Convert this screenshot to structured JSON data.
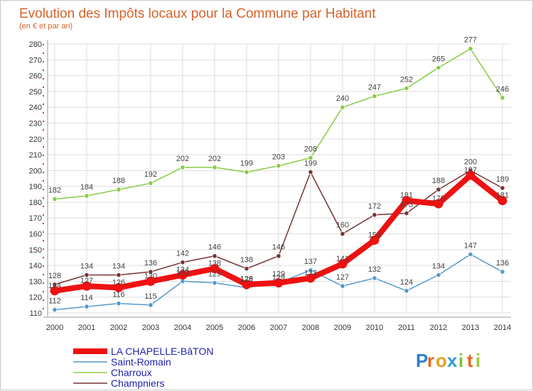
{
  "chart_data": {
    "type": "line",
    "title": "Evolution des Impôts locaux pour la Commune par Habitant",
    "subtitle": "(en € et par an)",
    "xlabel": "",
    "ylabel": "",
    "categories": [
      "2000",
      "2001",
      "2002",
      "2003",
      "2004",
      "2005",
      "2006",
      "2007",
      "2008",
      "2009",
      "2010",
      "2011",
      "2012",
      "2013",
      "2014"
    ],
    "ylim": [
      110,
      280
    ],
    "yticks": [
      110,
      120,
      130,
      140,
      150,
      160,
      170,
      180,
      190,
      200,
      210,
      220,
      230,
      240,
      250,
      260,
      270,
      280
    ],
    "grid": true,
    "legend_position": "bottom-left",
    "series": [
      {
        "name": "LA CHAPELLE-BâTON",
        "color": "#ee1111",
        "emphasis": true,
        "values": [
          124,
          127,
          126,
          130,
          134,
          138,
          128,
          129,
          132,
          141,
          156,
          181,
          179,
          197,
          181
        ],
        "labels": [
          "124",
          "127",
          "126",
          "130",
          "134",
          "138",
          "128",
          "129",
          "132",
          "141",
          "156",
          "181",
          "179",
          "197",
          "181"
        ]
      },
      {
        "name": "Saint-Romain",
        "color": "#5599cc",
        "values": [
          112,
          114,
          116,
          115,
          130,
          129,
          126,
          129,
          137,
          127,
          132,
          124,
          134,
          147,
          136
        ],
        "labels": [
          "112",
          "114",
          "116",
          "115",
          "130",
          "129",
          "126",
          "129",
          "137",
          "127",
          "132",
          "124",
          "134",
          "147",
          "136"
        ]
      },
      {
        "name": "Charroux",
        "color": "#88cc44",
        "values": [
          182,
          184,
          188,
          192,
          202,
          202,
          199,
          203,
          208,
          240,
          247,
          252,
          265,
          277,
          246
        ],
        "labels": [
          "182",
          "184",
          "188",
          "192",
          "202",
          "202",
          "199",
          "203",
          "208",
          "240",
          "247",
          "252",
          "265",
          "277",
          "246"
        ]
      },
      {
        "name": "Champniers",
        "color": "#773333",
        "values": [
          128,
          134,
          134,
          136,
          142,
          146,
          138,
          146,
          199,
          160,
          172,
          173,
          188,
          200,
          189
        ],
        "labels": [
          "128",
          "134",
          "134",
          "136",
          "142",
          "146",
          "138",
          "146",
          "199",
          "160",
          "172",
          "173",
          "188",
          "200",
          "189"
        ]
      }
    ]
  },
  "logo": {
    "letters": [
      "P",
      "r",
      "o",
      "x",
      "i",
      "t",
      "i"
    ],
    "colors": [
      "#2d7fd1",
      "#e8651a",
      "#e8a11a",
      "#2d9fd1",
      "#7ac231",
      "#e8651a",
      "#9acd32"
    ]
  }
}
